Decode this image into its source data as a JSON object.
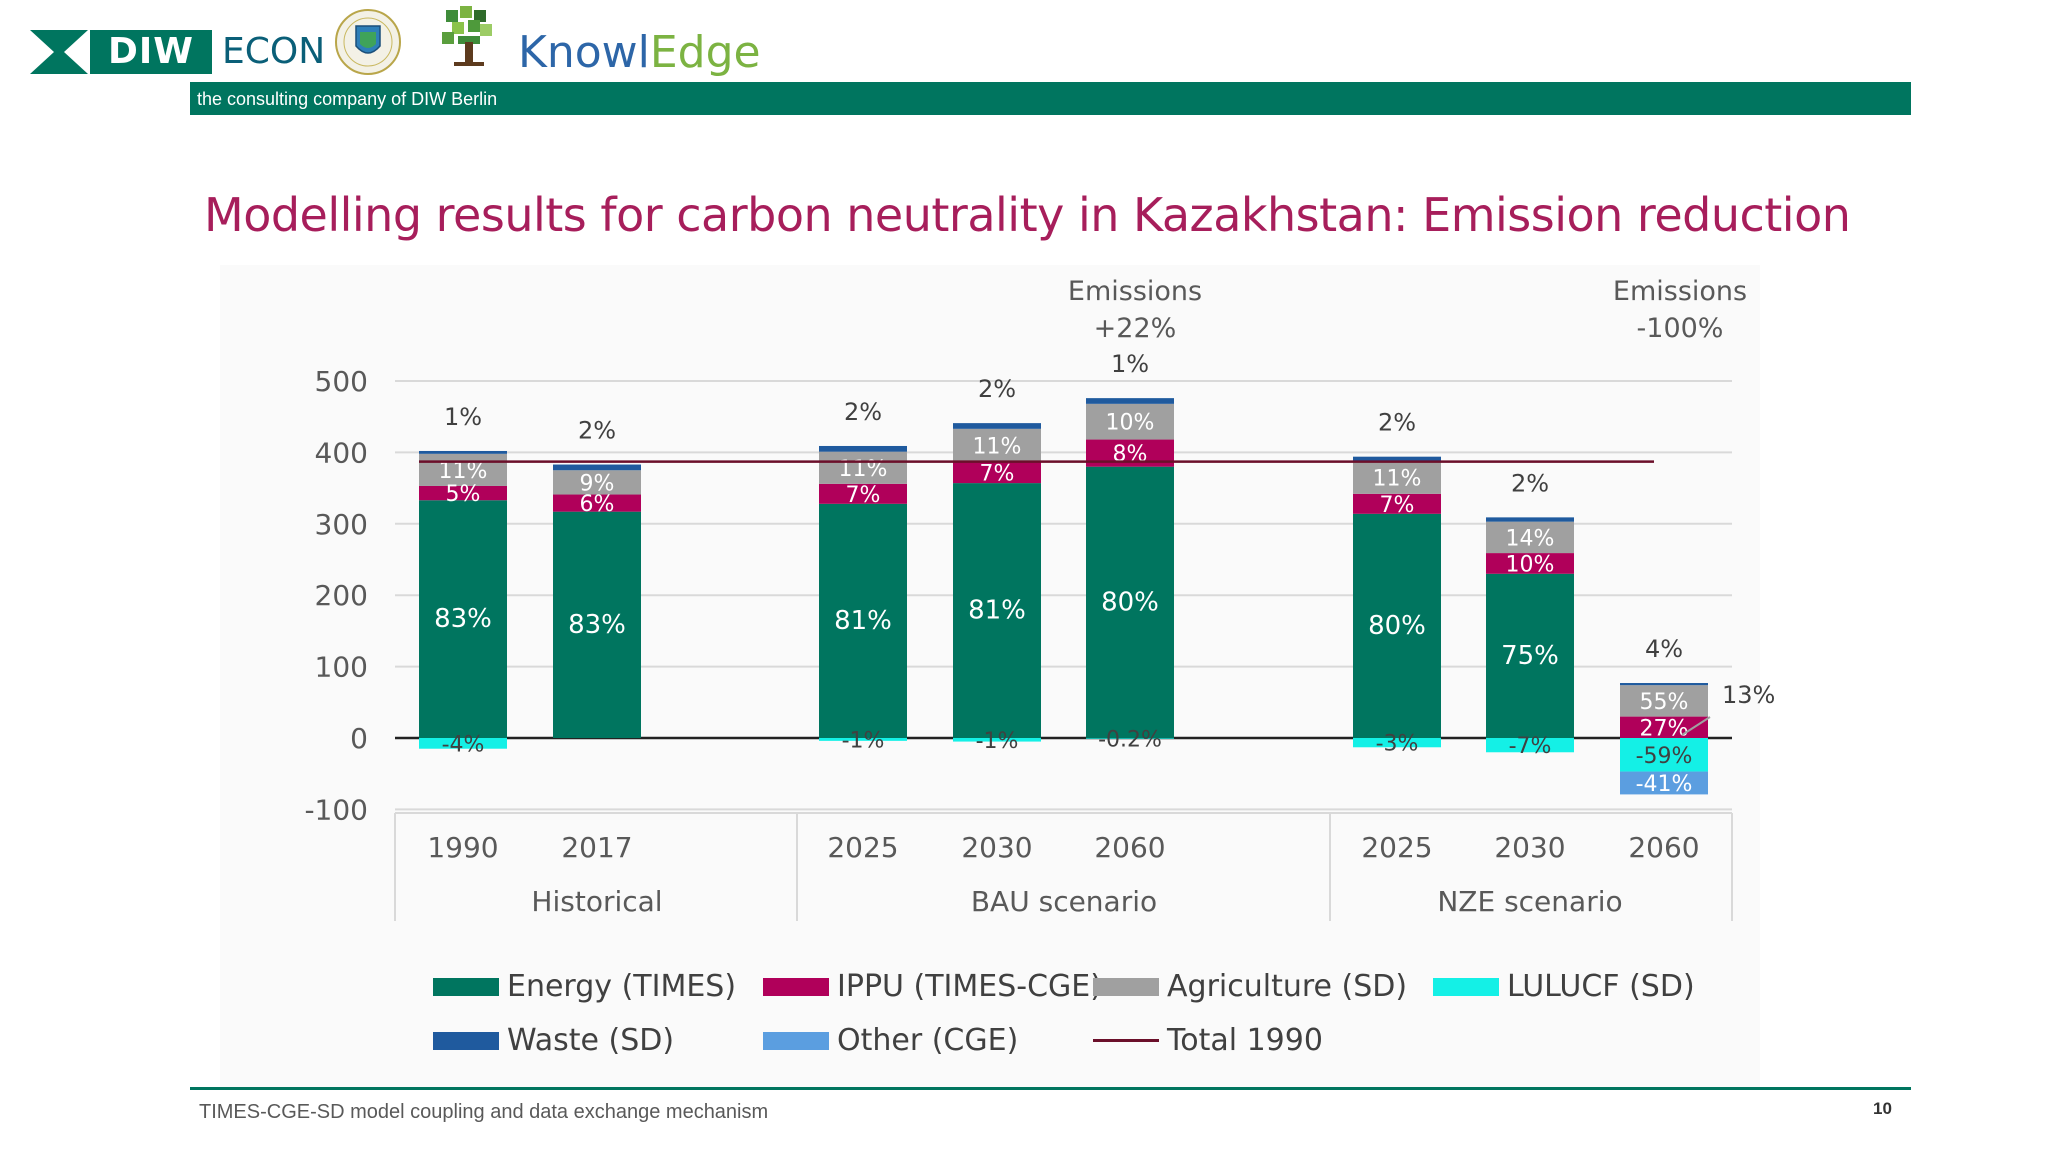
{
  "header": {
    "logo_diw": "DIW",
    "logo_econ": "ECON",
    "logo_knowl": "Knowl",
    "logo_edge": "Edge",
    "tagline": "the consulting company of DIW Berlin"
  },
  "slide": {
    "title": "Modelling results for carbon neutrality in Kazakhstan: Emission reduction"
  },
  "notes": {
    "bau_line1": "Emissions",
    "bau_line2": "+22%",
    "nze_line1": "Emissions",
    "nze_line2": "-100%"
  },
  "chart_data": {
    "type": "bar",
    "stacked": true,
    "categories": [
      "1990",
      "2017",
      "2025",
      "2030",
      "2060",
      "2025",
      "2030",
      "2060"
    ],
    "groups": [
      {
        "label": "Historical",
        "categories": [
          "1990",
          "2017"
        ]
      },
      {
        "label": "BAU scenario",
        "categories": [
          "2025",
          "2030",
          "2060"
        ]
      },
      {
        "label": "NZE scenario",
        "categories": [
          "2025",
          "2030",
          "2060"
        ]
      }
    ],
    "ylim": [
      -100,
      500
    ],
    "yticks": [
      "500",
      "400",
      "300",
      "200",
      "100",
      "0",
      "-100"
    ],
    "grid": true,
    "legend_position": "bottom",
    "series": [
      {
        "name": "Energy (TIMES)",
        "color": "#00755f",
        "values": [
          333,
          317,
          328,
          357,
          380,
          314,
          230,
          0
        ],
        "labels": [
          "83%",
          "83%",
          "81%",
          "81%",
          "80%",
          "80%",
          "75%",
          ""
        ]
      },
      {
        "name": "IPPU (TIMES-CGE)",
        "color": "#b0005a",
        "values": [
          20,
          24,
          28,
          29,
          38,
          28,
          29,
          30
        ],
        "labels": [
          "5%",
          "6%",
          "7%",
          "7%",
          "8%",
          "7%",
          "10%",
          "27%"
        ]
      },
      {
        "name": "Agriculture (SD)",
        "color": "#a0a0a0",
        "values": [
          45,
          34,
          45,
          47,
          50,
          45,
          44,
          44
        ],
        "labels": [
          "11%",
          "9%",
          "11%",
          "11%",
          "10%",
          "11%",
          "14%",
          "55%"
        ]
      },
      {
        "name": "LULUCF (SD)",
        "color": "#14f0e6",
        "values": [
          -15,
          0,
          -4,
          -5,
          -1,
          -13,
          -20,
          -47
        ],
        "labels": [
          "-4%",
          "",
          "-1%",
          "-1%",
          "-0.2%",
          "-3%",
          "-7%",
          "-59%"
        ]
      },
      {
        "name": "Waste (SD)",
        "color": "#1f5a9e",
        "values": [
          4,
          8,
          8,
          8,
          8,
          7,
          6,
          3
        ],
        "labels": [
          "1%",
          "2%",
          "2%",
          "2%",
          "1%",
          "2%",
          "2%",
          "4%"
        ]
      },
      {
        "name": "Other (CGE)",
        "color": "#5b9ee0",
        "values": [
          0,
          0,
          0,
          0,
          0,
          0,
          0,
          -32
        ],
        "labels": [
          "",
          "",
          "",
          "",
          "",
          "",
          "",
          "-41%"
        ]
      }
    ],
    "reference_line": {
      "name": "Total 1990",
      "value": 387,
      "color": "#6b0f2a"
    },
    "annotations": [
      {
        "text": "13%",
        "category_index": 7
      }
    ]
  },
  "footer": {
    "text": "TIMES-CGE-SD model coupling and data exchange mechanism",
    "page": "10"
  }
}
